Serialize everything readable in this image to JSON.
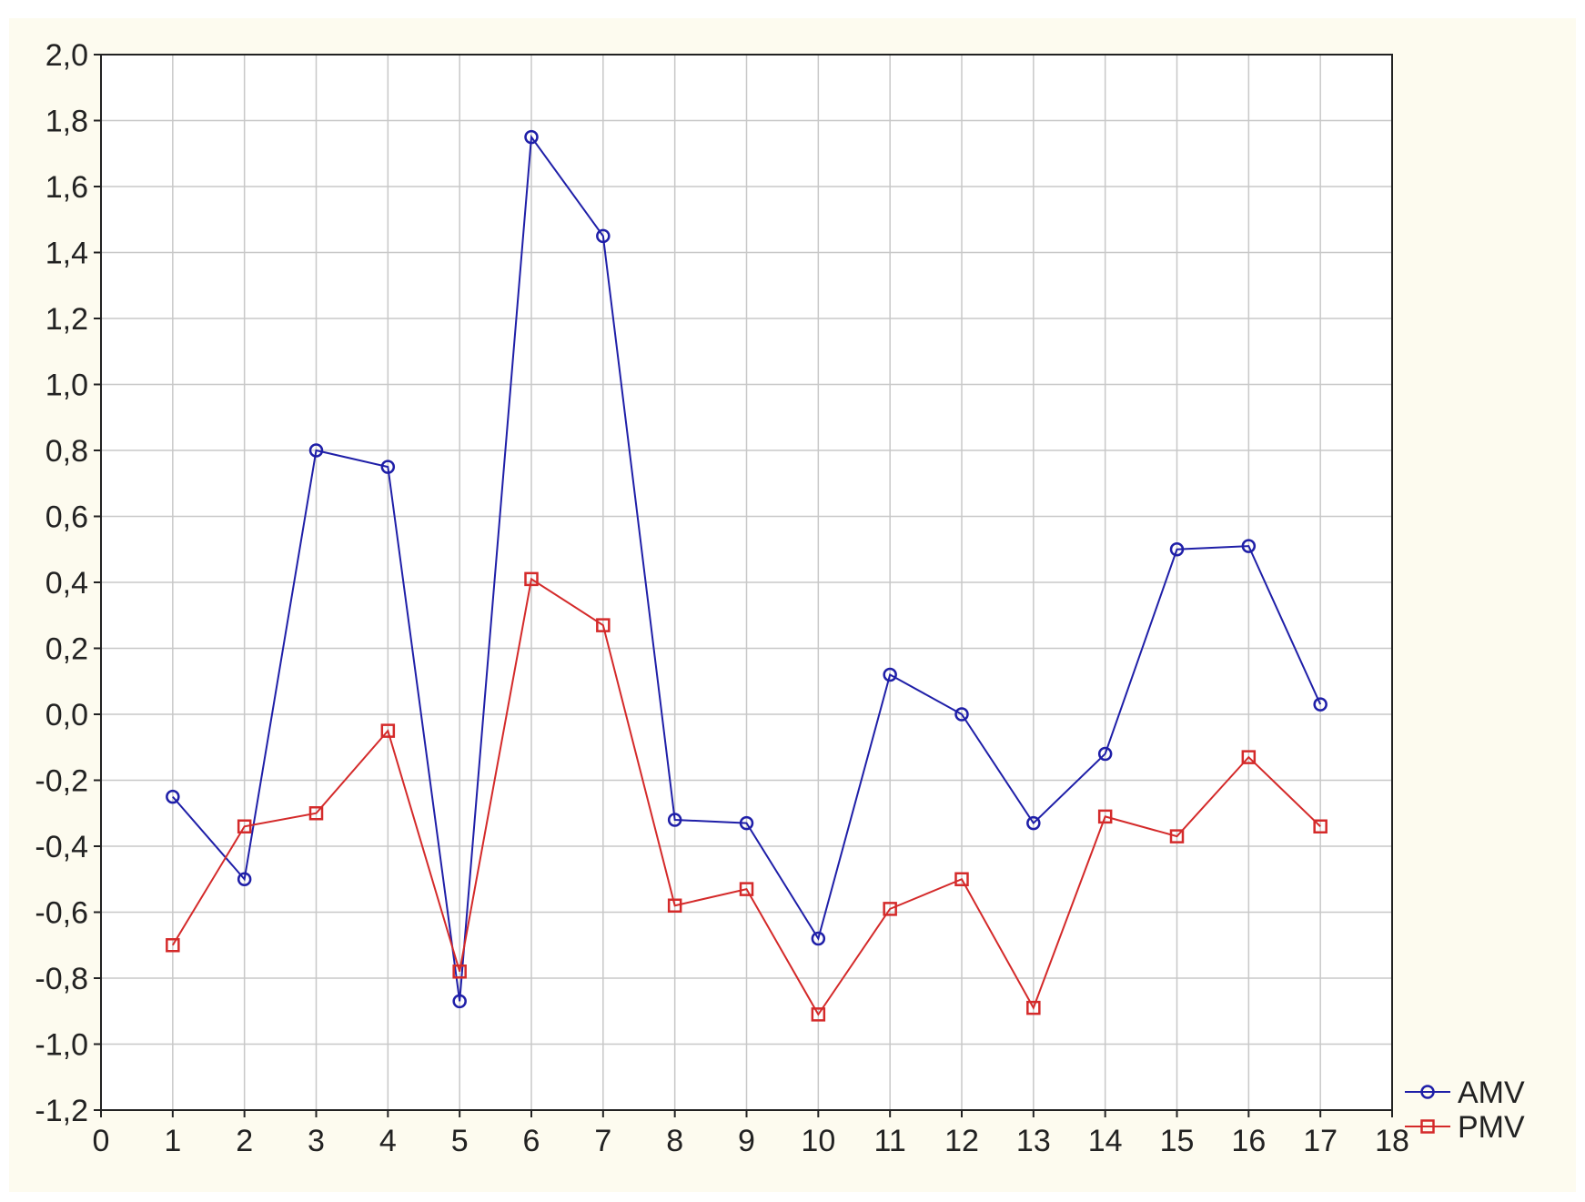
{
  "chart_data": {
    "type": "line",
    "title": "",
    "xlabel": "",
    "ylabel": "",
    "xlim": [
      0,
      18
    ],
    "ylim": [
      -1.2,
      2.0
    ],
    "xticks": [
      0,
      1,
      2,
      3,
      4,
      5,
      6,
      7,
      8,
      9,
      10,
      11,
      12,
      13,
      14,
      15,
      16,
      17,
      18
    ],
    "yticks": [
      "2,0",
      "1,8",
      "1,6",
      "1,4",
      "1,2",
      "1,0",
      "0,8",
      "0,6",
      "0,4",
      "0,2",
      "0,0",
      "-0,2",
      "-0,4",
      "-0,6",
      "-0,8",
      "-1,0",
      "-1,2"
    ],
    "ytick_values": [
      2.0,
      1.8,
      1.6,
      1.4,
      1.2,
      1.0,
      0.8,
      0.6,
      0.4,
      0.2,
      0.0,
      -0.2,
      -0.4,
      -0.6,
      -0.8,
      -1.0,
      -1.2
    ],
    "grid": true,
    "legend_position": "bottom-right, outside plot",
    "x": [
      1,
      2,
      3,
      4,
      5,
      6,
      7,
      8,
      9,
      10,
      11,
      12,
      13,
      14,
      15,
      16,
      17
    ],
    "series": [
      {
        "name": "AMV",
        "marker": "circle",
        "color": "#1f1fa8",
        "values": [
          -0.25,
          -0.5,
          0.8,
          0.75,
          -0.87,
          1.75,
          1.45,
          -0.32,
          -0.33,
          -0.68,
          0.12,
          0.0,
          -0.33,
          -0.12,
          0.5,
          0.51,
          0.03
        ]
      },
      {
        "name": "PMV",
        "marker": "square",
        "color": "#d42a2a",
        "values": [
          -0.7,
          -0.34,
          -0.3,
          -0.05,
          -0.78,
          0.41,
          0.27,
          -0.58,
          -0.53,
          -0.91,
          -0.59,
          -0.5,
          -0.89,
          -0.31,
          -0.37,
          -0.13,
          -0.34
        ]
      }
    ]
  },
  "colors": {
    "frame_background": "#fdfbef",
    "plot_background": "#ffffff",
    "grid": "#c8c8c8",
    "axis": "#222222"
  }
}
